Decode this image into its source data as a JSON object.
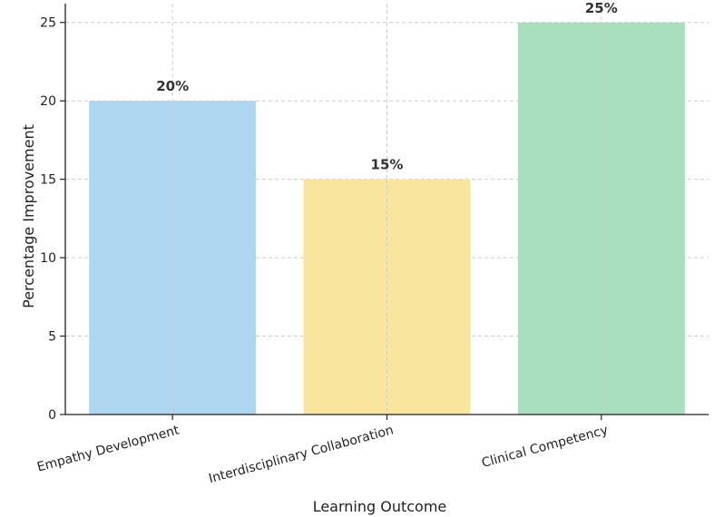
{
  "chart_data": {
    "type": "bar",
    "categories": [
      "Empathy Development",
      "Interdisciplinary Collaboration",
      "Clinical Competency"
    ],
    "values": [
      20,
      15,
      25
    ],
    "data_labels": [
      "20%",
      "15%",
      "25%"
    ],
    "colors": [
      "#aed6f1",
      "#f9e59e",
      "#a9dfbf"
    ],
    "title": "",
    "xlabel": "Learning Outcome",
    "ylabel": "Percentage Improvement",
    "ylim": [
      0,
      26.2
    ],
    "yticks": [
      0,
      5,
      10,
      15,
      20,
      25
    ],
    "grid": true,
    "x_tick_rotation": 15
  }
}
